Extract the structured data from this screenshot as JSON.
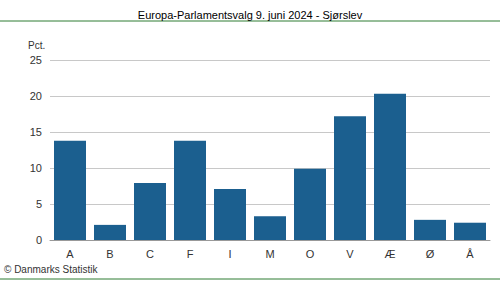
{
  "chart_data": {
    "type": "bar",
    "title": "Europa-Parlamentsvalg 9. juni 2024 - Sjørslev",
    "y_label": "Pct.",
    "source": "© Danmarks Statistik",
    "categories": [
      "A",
      "B",
      "C",
      "F",
      "I",
      "M",
      "O",
      "V",
      "Æ",
      "Ø",
      "Å"
    ],
    "values": [
      13.8,
      2.1,
      7.9,
      13.8,
      7.1,
      3.3,
      9.9,
      17.2,
      20.3,
      2.8,
      2.4
    ],
    "color": "#1b5f8f",
    "ylim": [
      0,
      25
    ],
    "yticks": [
      0,
      5,
      10,
      15,
      20,
      25
    ],
    "grid": true
  }
}
